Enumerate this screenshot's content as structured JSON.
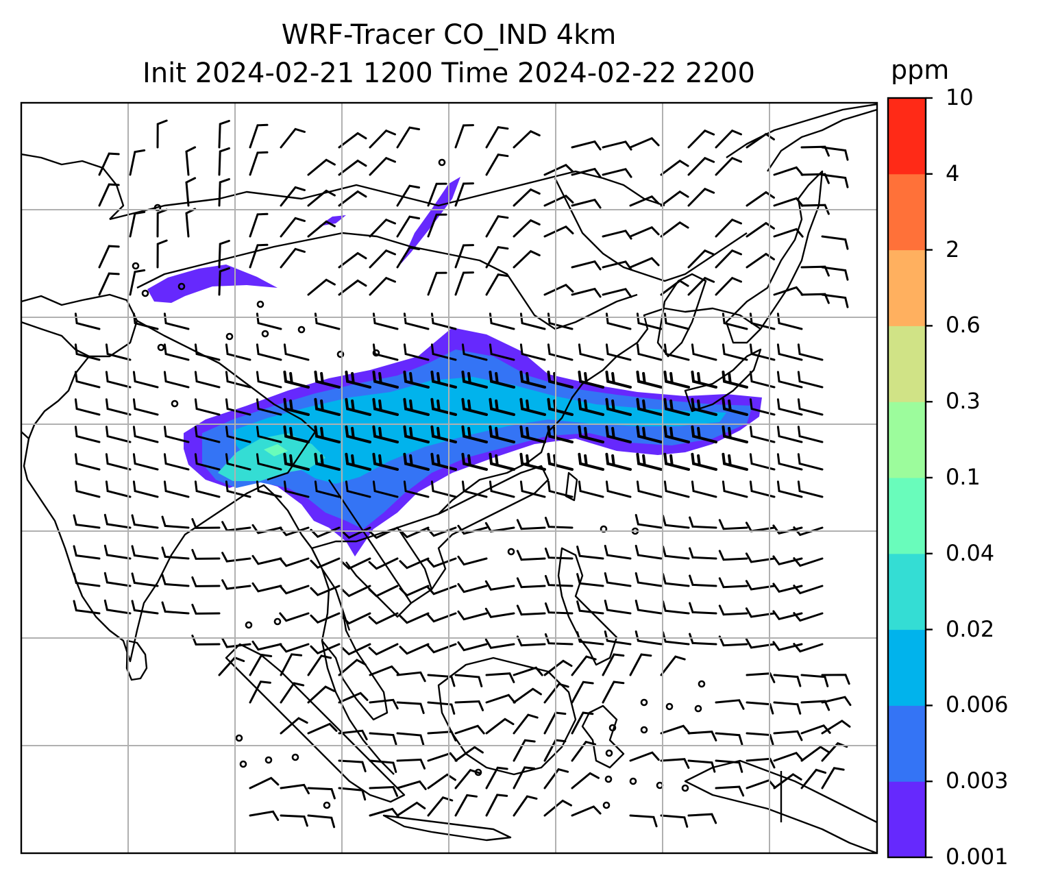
{
  "title": {
    "line1": "WRF-Tracer CO_IND 4km",
    "line2": "Init 2024-02-21 1200 Time 2024-02-22 2200"
  },
  "colorbar": {
    "unit": "ppm",
    "levels": [
      "0.001",
      "0.003",
      "0.006",
      "0.02",
      "0.04",
      "0.1",
      "0.3",
      "0.6",
      "2",
      "4",
      "10"
    ],
    "colors": [
      "#6629fd",
      "#3474f5",
      "#01b3ec",
      "#34ddd4",
      "#69fcbb",
      "#9cfc9c",
      "#d0e386",
      "#ffb05f",
      "#ff7139",
      "#ff2a17"
    ]
  },
  "map": {
    "field": "CO_IND tracer concentration",
    "overlay": "wind barbs",
    "gridlines": true
  }
}
